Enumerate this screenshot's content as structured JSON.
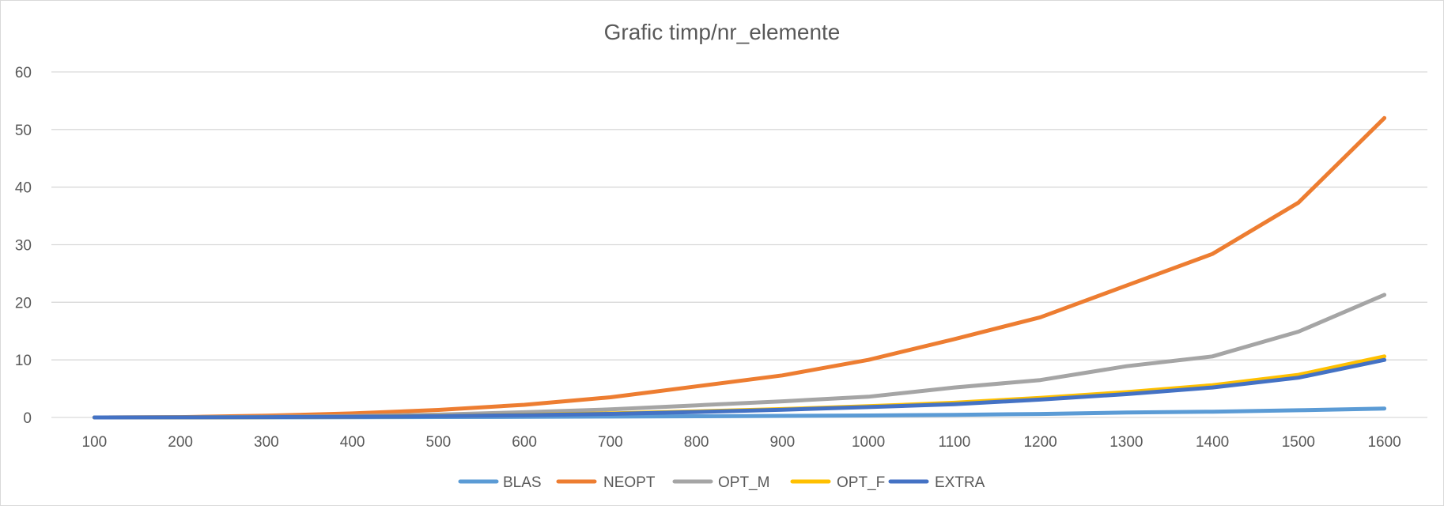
{
  "chart_data": {
    "type": "line",
    "title": "Grafic timp/nr_elemente",
    "xlabel": "",
    "ylabel": "",
    "categories": [
      "100",
      "200",
      "300",
      "400",
      "500",
      "600",
      "700",
      "800",
      "900",
      "1000",
      "1100",
      "1200",
      "1300",
      "1400",
      "1500",
      "1600"
    ],
    "ylim": [
      0,
      60
    ],
    "yticks": [
      0,
      10,
      20,
      30,
      40,
      50,
      60
    ],
    "grid": true,
    "legend_position": "bottom",
    "series": [
      {
        "name": "BLAS",
        "color": "#5B9BD5",
        "values": [
          0,
          0,
          0.02,
          0.04,
          0.07,
          0.1,
          0.15,
          0.2,
          0.28,
          0.35,
          0.45,
          0.6,
          0.85,
          1.0,
          1.25,
          1.55
        ]
      },
      {
        "name": "NEOPT",
        "color": "#ED7D31",
        "values": [
          0,
          0.05,
          0.3,
          0.7,
          1.3,
          2.2,
          3.5,
          5.4,
          7.3,
          10.0,
          13.6,
          17.4,
          22.9,
          28.4,
          37.3,
          52.0
        ]
      },
      {
        "name": "OPT_M",
        "color": "#A5A5A5",
        "values": [
          0,
          0.02,
          0.1,
          0.25,
          0.5,
          0.9,
          1.4,
          2.1,
          2.8,
          3.6,
          5.2,
          6.5,
          8.9,
          10.6,
          14.9,
          21.3
        ]
      },
      {
        "name": "OPT_F",
        "color": "#FFC000",
        "values": [
          0,
          0.01,
          0.05,
          0.12,
          0.25,
          0.45,
          0.7,
          1.05,
          1.45,
          1.95,
          2.55,
          3.4,
          4.4,
          5.6,
          7.4,
          10.6
        ]
      },
      {
        "name": "EXTRA",
        "color": "#4472C4",
        "values": [
          0,
          0.01,
          0.05,
          0.12,
          0.22,
          0.4,
          0.62,
          0.95,
          1.35,
          1.8,
          2.3,
          3.1,
          4.05,
          5.2,
          6.9,
          10.0
        ]
      }
    ]
  }
}
